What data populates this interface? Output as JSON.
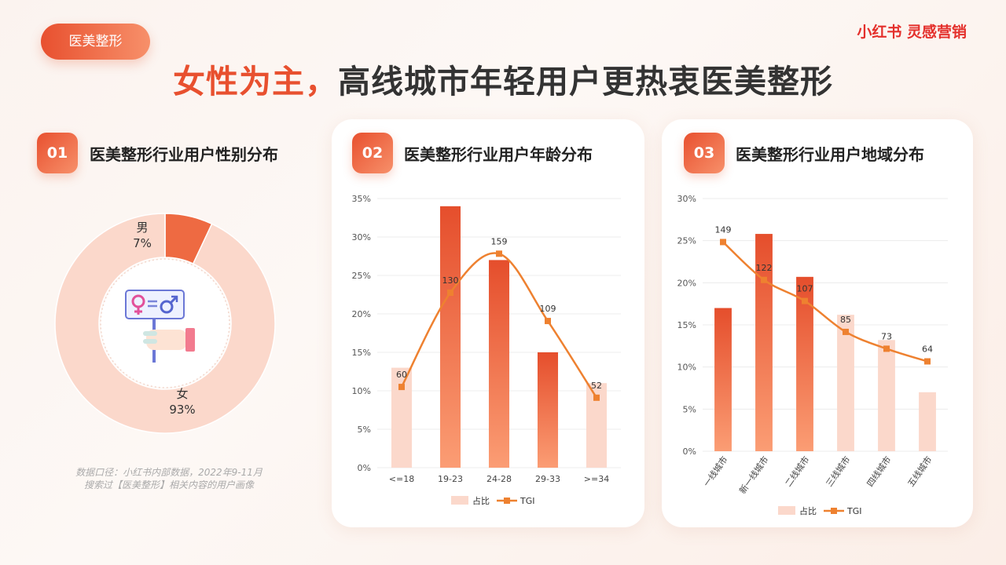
{
  "tag_label": "医美整形",
  "brand": "小红书 灵感营销",
  "headline": {
    "accent": "女性为主，",
    "rest": "高线城市年轻用户更热衷医美整形"
  },
  "sections": [
    {
      "num": "01",
      "title": "医美整形行业用户性别分布"
    },
    {
      "num": "02",
      "title": "医美整形行业用户年龄分布"
    },
    {
      "num": "03",
      "title": "医美整形行业用户地域分布"
    }
  ],
  "note": {
    "line1": "数据口径：小红书内部数据，2022年9-11月",
    "line2": "搜索过【医美整形】相关内容的用户画像"
  },
  "colors": {
    "accent": "#e8502f",
    "light": "#fbd8cb",
    "line": "#ee8130"
  },
  "chart_data": [
    {
      "type": "pie",
      "slices": [
        {
          "label": "男",
          "value": 7,
          "value_label": "7%"
        },
        {
          "label": "女",
          "value": 93,
          "value_label": "93%"
        }
      ],
      "icon": "gender-equality-icon"
    },
    {
      "type": "bar",
      "categories": [
        "<=18",
        "19-23",
        "24-28",
        "29-33",
        ">=34"
      ],
      "series": [
        {
          "name": "占比",
          "values": [
            13,
            34,
            27,
            15,
            11
          ]
        },
        {
          "name": "TGI",
          "values": [
            60,
            130,
            159,
            109,
            52
          ],
          "type": "line"
        }
      ],
      "highlight": [
        false,
        true,
        true,
        true,
        false
      ],
      "ylim": [
        0,
        35
      ],
      "yticks": [
        "0%",
        "5%",
        "10%",
        "15%",
        "20%",
        "25%",
        "30%",
        "35%"
      ],
      "legend": "bottom"
    },
    {
      "type": "bar",
      "categories": [
        "一线城市",
        "新一线城市",
        "二线城市",
        "三线城市",
        "四线城市",
        "五线城市"
      ],
      "series": [
        {
          "name": "占比",
          "values": [
            17,
            25.8,
            20.7,
            16.2,
            13.2,
            7
          ]
        },
        {
          "name": "TGI",
          "values": [
            149,
            122,
            107,
            85,
            73,
            64
          ],
          "type": "line"
        }
      ],
      "highlight": [
        true,
        true,
        true,
        false,
        false,
        false
      ],
      "ylim": [
        0,
        30
      ],
      "yticks": [
        "0%",
        "5%",
        "10%",
        "15%",
        "20%",
        "25%",
        "30%"
      ],
      "legend": "bottom"
    }
  ]
}
